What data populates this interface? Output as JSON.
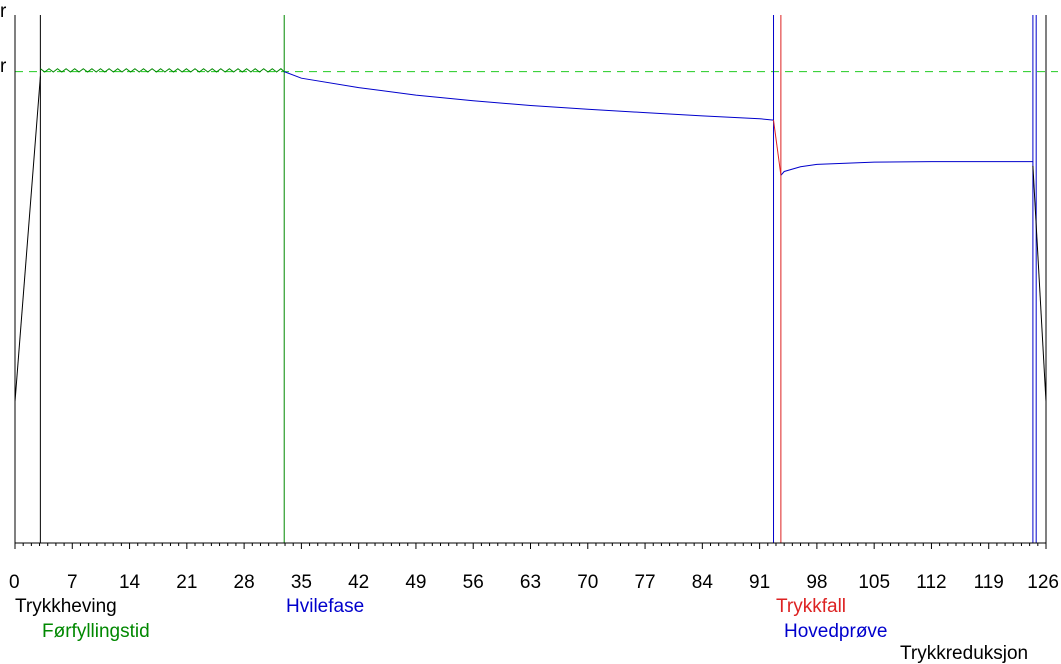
{
  "chart_data": {
    "type": "line",
    "title": "",
    "xlabel": "",
    "ylabel": "",
    "xlim": [
      0,
      126
    ],
    "x_ticks": [
      "0",
      "7",
      "14",
      "21",
      "28",
      "35",
      "42",
      "49",
      "56",
      "63",
      "70",
      "77",
      "84",
      "91",
      "98",
      "105",
      "112",
      "119",
      "126"
    ],
    "y_edge_labels": [
      "r",
      "r"
    ],
    "reference_level": {
      "y": 100,
      "color": "#22cc22",
      "style": "dashed"
    },
    "ylim": [
      0,
      112
    ],
    "series": [
      {
        "color": "#000000",
        "segments": [
          {
            "x": [
              0,
              3.1
            ],
            "y": [
              30,
              99
            ]
          },
          {
            "x": [
              124.4,
              126
            ],
            "y": [
              80,
              30
            ]
          }
        ]
      },
      {
        "color": "#008800",
        "sawtooth": {
          "x_start": 3.1,
          "x_end": 32.9,
          "y_base": 100,
          "amplitude": 1.0,
          "period": 1.05
        },
        "segments": []
      },
      {
        "color": "#0000cc",
        "segments": [
          {
            "x": [
              32.9,
              35,
              42,
              49,
              56,
              63,
              70,
              77,
              84,
              91,
              92.7
            ],
            "y": [
              100,
              98.6,
              96.6,
              95.0,
              93.8,
              92.8,
              92.0,
              91.3,
              90.6,
              90.0,
              89.7
            ]
          },
          {
            "x": [
              93.6,
              94,
              96,
              98,
              105,
              112,
              119,
              124.4
            ],
            "y": [
              78.0,
              78.8,
              79.8,
              80.3,
              80.8,
              80.9,
              80.9,
              80.9
            ]
          }
        ]
      },
      {
        "color": "#dd2222",
        "segments": [
          {
            "x": [
              92.7,
              93.6
            ],
            "y": [
              89.7,
              78.0
            ]
          }
        ]
      }
    ],
    "phase_markers": [
      {
        "x": 3.1,
        "color": "#000000"
      },
      {
        "x": 32.9,
        "color": "#008800"
      },
      {
        "x": 92.7,
        "color": "#0000cc"
      },
      {
        "x": 93.6,
        "color": "#dd2222"
      },
      {
        "x": 124.4,
        "color": "#0000cc"
      },
      {
        "x": 124.8,
        "color": "#0000cc"
      },
      {
        "x": 126,
        "color": "#000000"
      }
    ]
  },
  "phase_labels": [
    {
      "text": "Trykkheving",
      "color": "#000000"
    },
    {
      "text": "Førfyllingstid",
      "color": "#008800"
    },
    {
      "text": "Hvilefase",
      "color": "#0000cc"
    },
    {
      "text": "Trykkfall",
      "color": "#dd2222"
    },
    {
      "text": "Hovedprøve",
      "color": "#0000cc"
    },
    {
      "text": "Trykkreduksjon",
      "color": "#000000"
    }
  ]
}
